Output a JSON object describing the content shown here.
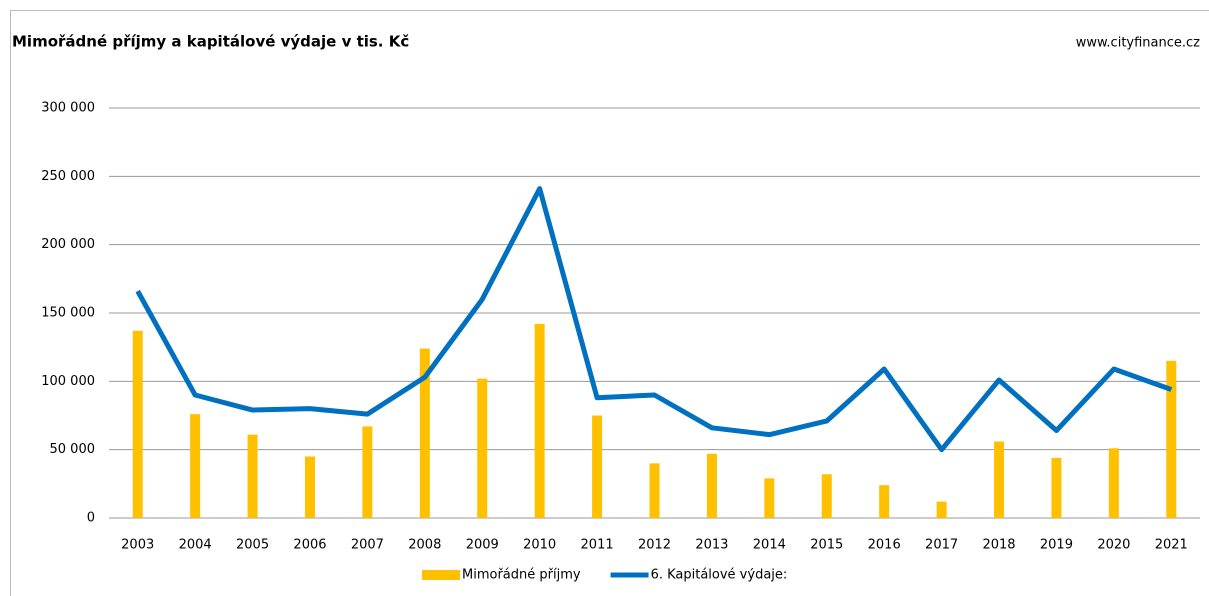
{
  "chart_data": {
    "type": "bar-line",
    "title": "Mimořádné příjmy a kapitálové výdaje v tis. Kč",
    "source": "www.cityfinance.cz",
    "categories": [
      "2003",
      "2004",
      "2005",
      "2006",
      "2007",
      "2008",
      "2009",
      "2010",
      "2011",
      "2012",
      "2013",
      "2014",
      "2015",
      "2016",
      "2017",
      "2018",
      "2019",
      "2020",
      "2021"
    ],
    "series": [
      {
        "name": "Mimořádné příjmy",
        "type": "bar",
        "color": "#ffc000",
        "values": [
          137000,
          76000,
          61000,
          45000,
          67000,
          124000,
          102000,
          142000,
          75000,
          40000,
          47000,
          29000,
          32000,
          24000,
          12000,
          56000,
          44000,
          51000,
          115000
        ]
      },
      {
        "name": "6. Kapitálové výdaje:",
        "type": "line",
        "color": "#0070c0",
        "values": [
          166000,
          90000,
          79000,
          80000,
          76000,
          103000,
          160000,
          241000,
          88000,
          90000,
          66000,
          61000,
          71000,
          109000,
          50000,
          101000,
          64000,
          109000,
          94000
        ]
      }
    ],
    "ylim": [
      0,
      300000
    ],
    "yticks": [
      0,
      {
        "value": 50000,
        "label": "50 000"
      },
      {
        "value": 100000,
        "label": "100 000"
      },
      {
        "value": 150000,
        "label": "150 000"
      },
      {
        "value": 200000,
        "label": "200 000"
      },
      {
        "value": 250000,
        "label": "250 000"
      },
      {
        "value": 300000,
        "label": "300 000"
      }
    ],
    "grid": true,
    "legend": "bottom"
  }
}
